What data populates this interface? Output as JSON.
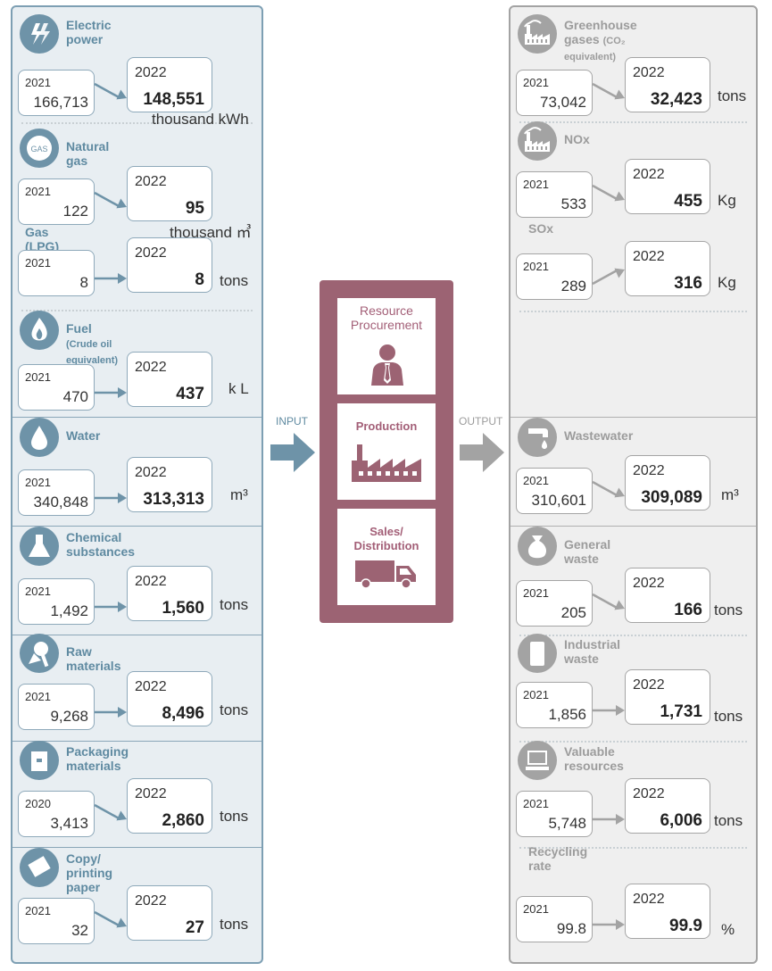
{
  "input": {
    "label": "INPUT",
    "items": [
      {
        "key": "electric",
        "icon": "lightning-icon",
        "title": [
          "Electric",
          "power"
        ],
        "note": "",
        "old": {
          "year": "2021",
          "value": "166,713"
        },
        "new": {
          "year": "2022",
          "value": "148,551"
        },
        "unit": "thousand kWh"
      },
      {
        "key": "gas",
        "icon": "gas-icon",
        "icon_text": "GAS",
        "title": [
          "Natural gas"
        ],
        "note": "",
        "old": {
          "year": "2021",
          "value": "122"
        },
        "new": {
          "year": "2022",
          "value": "95"
        },
        "unit": "thousand ㎥"
      },
      {
        "key": "lpg",
        "icon": "",
        "title": [
          "Gas (LPG)"
        ],
        "note": "",
        "old": {
          "year": "2021",
          "value": "8"
        },
        "new": {
          "year": "2022",
          "value": "8"
        },
        "unit": "tons"
      },
      {
        "key": "fuel",
        "icon": "flame-icon",
        "title": [
          "Fuel"
        ],
        "note": "(Crude oil equivalent)",
        "old": {
          "year": "2021",
          "value": "470"
        },
        "new": {
          "year": "2022",
          "value": "437"
        },
        "unit": "k L"
      },
      {
        "key": "water",
        "icon": "water-drop-icon",
        "title": [
          "Water"
        ],
        "note": "",
        "old": {
          "year": "2021",
          "value": "340,848"
        },
        "new": {
          "year": "2022",
          "value": "313,313"
        },
        "unit": "m³"
      },
      {
        "key": "chemical",
        "icon": "flask-icon",
        "title": [
          "Chemical",
          "substances"
        ],
        "note": "",
        "old": {
          "year": "2021",
          "value": "1,492"
        },
        "new": {
          "year": "2022",
          "value": "1,560"
        },
        "unit": "tons"
      },
      {
        "key": "raw",
        "icon": "raw-materials-icon",
        "title": [
          "Raw materials"
        ],
        "note": "",
        "old": {
          "year": "2021",
          "value": "9,268"
        },
        "new": {
          "year": "2022",
          "value": "8,496"
        },
        "unit": "tons"
      },
      {
        "key": "packaging",
        "icon": "box-icon",
        "title": [
          "Packaging",
          "materials"
        ],
        "note": "",
        "old": {
          "year": "2020",
          "value": "3,413"
        },
        "new": {
          "year": "2022",
          "value": "2,860"
        },
        "unit": "tons"
      },
      {
        "key": "paper",
        "icon": "paper-icon",
        "title": [
          "Copy/",
          "printing paper"
        ],
        "note": "",
        "old": {
          "year": "2021",
          "value": "32"
        },
        "new": {
          "year": "2022",
          "value": "27"
        },
        "unit": "tons"
      }
    ]
  },
  "process": {
    "steps": [
      {
        "label": [
          "Resource",
          "Procurement"
        ],
        "icon": "person-icon"
      },
      {
        "label": [
          "Production"
        ],
        "icon": "factory-icon"
      },
      {
        "label": [
          "Sales/",
          "Distribution"
        ],
        "icon": "truck-icon"
      }
    ]
  },
  "output": {
    "label": "OUTPUT",
    "items": [
      {
        "key": "ghg",
        "icon": "factory-emission-icon",
        "title": [
          "Greenhouse",
          "gases"
        ],
        "note": "(CO₂ equivalent)",
        "old": {
          "year": "2021",
          "value": "73,042"
        },
        "new": {
          "year": "2022",
          "value": "32,423"
        },
        "unit": "tons"
      },
      {
        "key": "nox",
        "icon": "factory-emission-icon",
        "title": [
          "NOx"
        ],
        "note": "",
        "old": {
          "year": "2021",
          "value": "533"
        },
        "new": {
          "year": "2022",
          "value": "455"
        },
        "unit": "Kg"
      },
      {
        "key": "sox",
        "icon": "",
        "title": [
          "SOx"
        ],
        "note": "",
        "old": {
          "year": "2021",
          "value": "289"
        },
        "new": {
          "year": "2022",
          "value": "316"
        },
        "unit": "Kg"
      },
      {
        "key": "wastewater",
        "icon": "faucet-icon",
        "title": [
          "Wastewater"
        ],
        "note": "",
        "old": {
          "year": "2021",
          "value": "310,601"
        },
        "new": {
          "year": "2022",
          "value": "309,089"
        },
        "unit": "m³"
      },
      {
        "key": "general",
        "icon": "garbage-bag-icon",
        "title": [
          "General waste"
        ],
        "note": "",
        "old": {
          "year": "2021",
          "value": "205"
        },
        "new": {
          "year": "2022",
          "value": "166"
        },
        "unit": "tons"
      },
      {
        "key": "industrial",
        "icon": "drum-icon",
        "title": [
          "Industrial",
          "waste"
        ],
        "note": "",
        "old": {
          "year": "2021",
          "value": "1,856"
        },
        "new": {
          "year": "2022",
          "value": "1,731"
        },
        "unit": "tons"
      },
      {
        "key": "valuable",
        "icon": "computer-icon",
        "title": [
          "Valuable",
          "resources"
        ],
        "note": "",
        "old": {
          "year": "2021",
          "value": "5,748"
        },
        "new": {
          "year": "2022",
          "value": "6,006"
        },
        "unit": "tons"
      },
      {
        "key": "recycling",
        "icon": "",
        "title": [
          "Recycling rate"
        ],
        "note": "",
        "old": {
          "year": "2021",
          "value": "99.8"
        },
        "new": {
          "year": "2022",
          "value": "99.9"
        },
        "unit": "%"
      }
    ]
  },
  "colors": {
    "input": "#6e93a8",
    "output": "#a3a3a3",
    "process": "#9c6373",
    "process_text": "#a35f77"
  }
}
